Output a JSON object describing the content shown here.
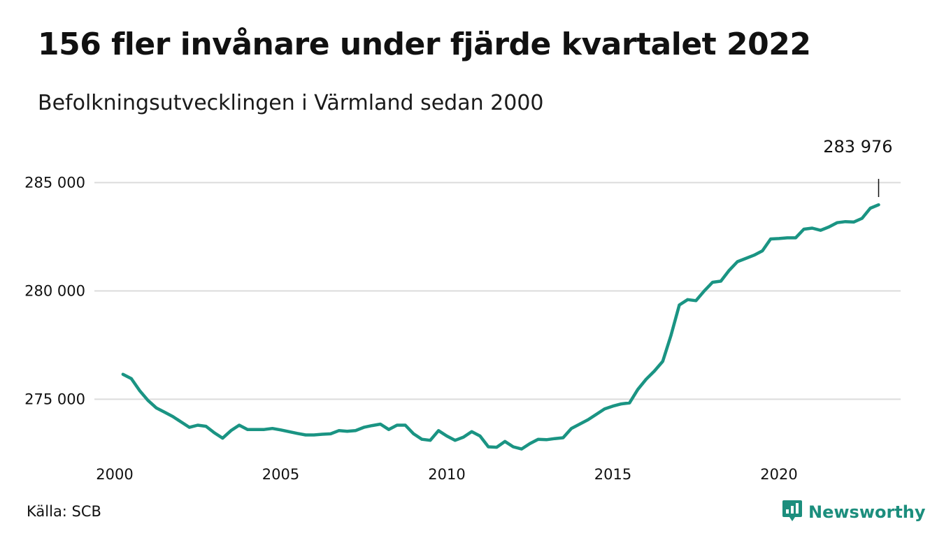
{
  "title": "156 fler invånare under fjärde kvartalet 2022",
  "subtitle": "Befolkningsutvecklingen i Värmland sedan 2000",
  "source": "Källa: SCB",
  "brand": "Newsworthy",
  "chart_data": {
    "type": "line",
    "title": "156 fler invånare under fjärde kvartalet 2022",
    "subtitle": "Befolkningsutvecklingen i Värmland sedan 2000",
    "xlabel": "",
    "ylabel": "",
    "ylim": [
      272300,
      286400
    ],
    "xlim": [
      2000,
      2023.5
    ],
    "x_ticks": [
      2000,
      2005,
      2010,
      2015,
      2020
    ],
    "x_tick_labels": [
      "2000",
      "2005",
      "2010",
      "2015",
      "2020"
    ],
    "y_ticks": [
      275000,
      280000,
      285000
    ],
    "y_tick_labels": [
      "275 000",
      "280 000",
      "285 000"
    ],
    "grid": true,
    "line_color": "#1a9483",
    "last_value_label": "283 976",
    "series": [
      {
        "x": [
          2000.25,
          2000.5,
          2000.75,
          2001.0,
          2001.25,
          2001.5,
          2001.75,
          2002.0,
          2002.25,
          2002.5,
          2002.75,
          2003.0,
          2003.25,
          2003.5,
          2003.75,
          2004.0,
          2004.25,
          2004.5,
          2004.75,
          2005.0,
          2005.25,
          2005.5,
          2005.75,
          2006.0,
          2006.25,
          2006.5,
          2006.75,
          2007.0,
          2007.25,
          2007.5,
          2007.75,
          2008.0,
          2008.25,
          2008.5,
          2008.75,
          2009.0,
          2009.25,
          2009.5,
          2009.75,
          2010.0,
          2010.25,
          2010.5,
          2010.75,
          2011.0,
          2011.25,
          2011.5,
          2011.75,
          2012.0,
          2012.25,
          2012.5,
          2012.75,
          2013.0,
          2013.25,
          2013.5,
          2013.75,
          2014.0,
          2014.25,
          2014.5,
          2014.75,
          2015.0,
          2015.25,
          2015.5,
          2015.75,
          2016.0,
          2016.25,
          2016.5,
          2016.75,
          2017.0,
          2017.25,
          2017.5,
          2017.75,
          2018.0,
          2018.25,
          2018.5,
          2018.75,
          2019.0,
          2019.25,
          2019.5,
          2019.75,
          2020.0,
          2020.25,
          2020.5,
          2020.75,
          2021.0,
          2021.25,
          2021.5,
          2021.75,
          2022.0,
          2022.25,
          2022.5,
          2022.75,
          2023.0
        ],
        "values": [
          276150,
          275950,
          275400,
          274950,
          274600,
          274400,
          274200,
          273950,
          273700,
          273800,
          273750,
          273450,
          273200,
          273550,
          273800,
          273600,
          273600,
          273600,
          273650,
          273580,
          273500,
          273420,
          273350,
          273350,
          273380,
          273400,
          273550,
          273520,
          273550,
          273700,
          273780,
          273850,
          273600,
          273800,
          273800,
          273400,
          273150,
          273100,
          273550,
          273300,
          273100,
          273250,
          273500,
          273300,
          272800,
          272780,
          273050,
          272800,
          272700,
          272950,
          273150,
          273130,
          273180,
          273220,
          273650,
          273850,
          274050,
          274300,
          274550,
          274680,
          274780,
          274830,
          275450,
          275920,
          276300,
          276750,
          277950,
          279350,
          279600,
          279550,
          280000,
          280400,
          280450,
          280950,
          281350,
          281500,
          281650,
          281850,
          282400,
          282420,
          282450,
          282450,
          282850,
          282900,
          282800,
          282950,
          283150,
          283200,
          283180,
          283350,
          283820,
          283976
        ]
      }
    ]
  }
}
